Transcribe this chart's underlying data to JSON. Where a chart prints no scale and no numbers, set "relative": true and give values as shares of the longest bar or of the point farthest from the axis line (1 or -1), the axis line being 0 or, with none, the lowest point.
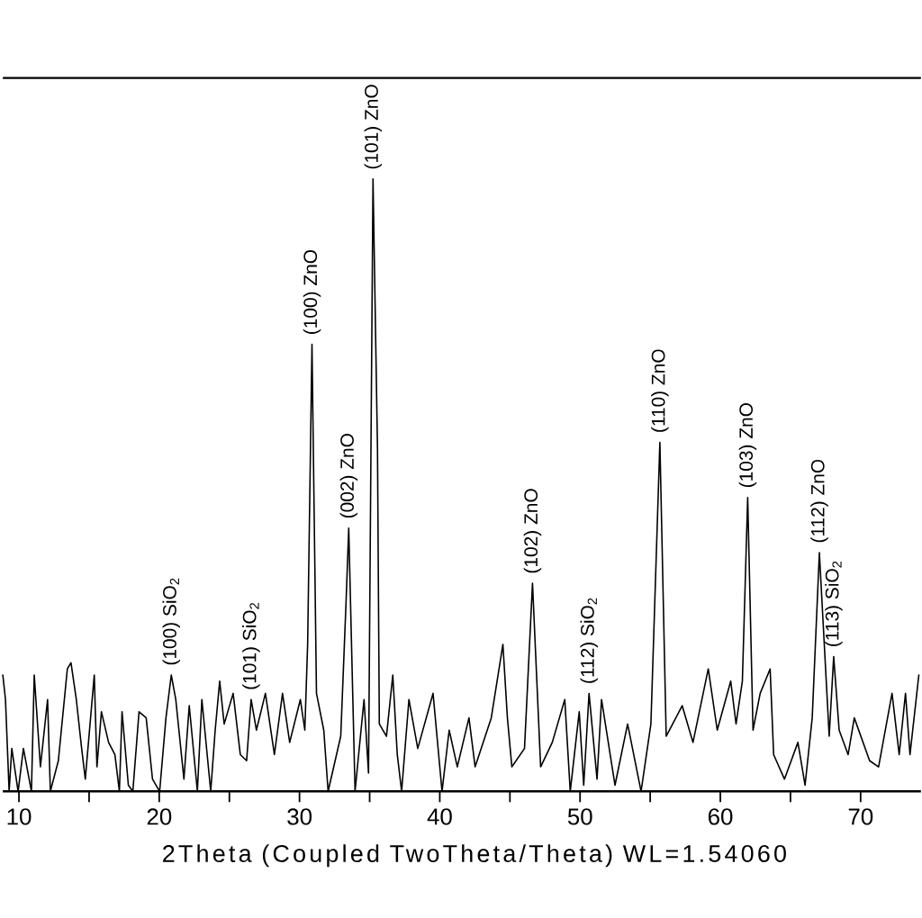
{
  "chart_data": {
    "type": "line",
    "xlabel": "2Theta (Coupled TwoTheta/Theta) WL=1.54060",
    "relative": true,
    "xlim": [
      8.85,
      74.3
    ],
    "xticks": [
      10,
      {
        "value": 15,
        "label": null
      },
      20,
      {
        "value": 25,
        "label": null
      },
      30,
      {
        "value": 35,
        "label": null
      },
      40,
      {
        "value": 45,
        "label": null
      },
      50,
      {
        "value": 55,
        "label": null
      },
      60,
      {
        "value": 65,
        "label": null
      },
      70
    ],
    "series": [
      {
        "color": "#000000",
        "x": [
          8.85,
          9.04,
          9.3,
          9.49,
          9.94,
          10.32,
          10.89,
          11.09,
          11.53,
          12.04,
          12.24,
          12.81,
          13.45,
          13.71,
          14.09,
          14.47,
          14.73,
          15.37,
          15.56,
          15.88,
          16.39,
          16.84,
          17.16,
          17.35,
          17.8,
          18.12,
          18.56,
          19.07,
          19.52,
          20.03,
          20.48,
          20.86,
          21.18,
          21.76,
          22.14,
          22.72,
          23.04,
          23.67,
          23.99,
          24.31,
          24.63,
          25.27,
          25.78,
          26.23,
          26.55,
          26.93,
          27.57,
          28.21,
          28.79,
          29.3,
          30.06,
          30.38,
          30.58,
          30.89,
          31.21,
          31.73,
          32.04,
          32.94,
          33.32,
          33.51,
          33.96,
          34.6,
          34.92,
          35.24,
          35.56,
          35.69,
          36.2,
          36.65,
          36.97,
          37.28,
          37.8,
          38.43,
          39.52,
          40.16,
          40.67,
          41.25,
          42.08,
          42.52,
          43.67,
          44.5,
          44.82,
          45.14,
          46.04,
          46.61,
          47.19,
          48.02,
          48.91,
          49.3,
          49.94,
          50.26,
          50.64,
          51.21,
          51.53,
          52.49,
          53.39,
          54.35,
          55.05,
          55.69,
          56.14,
          57.28,
          58.05,
          59.14,
          59.78,
          60.74,
          61.12,
          61.57,
          61.95,
          62.33,
          62.84,
          63.55,
          63.8,
          64.57,
          65.53,
          66.04,
          66.55,
          67.06,
          67.76,
          68.08,
          68.47,
          69.11,
          69.55,
          70.64,
          71.28,
          72.24,
          72.75,
          73.2,
          73.52,
          74.15
        ],
        "values": [
          0.19,
          0.15,
          0,
          0.07,
          0,
          0.07,
          0,
          0.19,
          0.04,
          0.15,
          0,
          0.05,
          0.2,
          0.21,
          0.15,
          0.07,
          0.02,
          0.19,
          0.04,
          0.13,
          0.08,
          0.06,
          0,
          0.13,
          0.01,
          0,
          0.13,
          0.12,
          0.02,
          0,
          0.12,
          0.19,
          0.15,
          0.02,
          0.14,
          0,
          0.15,
          0,
          0.1,
          0.18,
          0.11,
          0.16,
          0.06,
          0.05,
          0.15,
          0.1,
          0.16,
          0.06,
          0.16,
          0.08,
          0.15,
          0.1,
          0.24,
          0.73,
          0.16,
          0.1,
          0,
          0.09,
          0.31,
          0.43,
          0,
          0.15,
          0.03,
          1.0,
          0.56,
          0.11,
          0.09,
          0.19,
          0.06,
          0,
          0.15,
          0.07,
          0.16,
          0,
          0.1,
          0.04,
          0.12,
          0.04,
          0.12,
          0.24,
          0.12,
          0.04,
          0.07,
          0.34,
          0.04,
          0.08,
          0.15,
          0,
          0.13,
          0.01,
          0.16,
          0.02,
          0.15,
          0.01,
          0.11,
          0,
          0.11,
          0.57,
          0.09,
          0.14,
          0.08,
          0.2,
          0.1,
          0.18,
          0.11,
          0.18,
          0.48,
          0.1,
          0.16,
          0.2,
          0.06,
          0.02,
          0.08,
          0.01,
          0.12,
          0.39,
          0.09,
          0.22,
          0.1,
          0.06,
          0.12,
          0.05,
          0.04,
          0.16,
          0.06,
          0.16,
          0.06,
          0.19
        ]
      }
    ],
    "annotations": [
      {
        "text": "(100) SiO$_{2}$",
        "x": 20.86,
        "y": 0.19
      },
      {
        "text": "(101)  SiO$_{2}$",
        "x": 26.55,
        "y": 0.15
      },
      {
        "text": "(100) ZnO",
        "x": 30.89,
        "y": 0.73
      },
      {
        "text": "(002)  ZnO",
        "x": 33.51,
        "y": 0.43
      },
      {
        "text": "(101) ZnO",
        "x": 35.24,
        "y": 1.0
      },
      {
        "text": "(102)  ZnO",
        "x": 46.61,
        "y": 0.34
      },
      {
        "text": "(112) SiO$_{2}$",
        "x": 50.64,
        "y": 0.16
      },
      {
        "text": "(110)  ZnO",
        "x": 55.69,
        "y": 0.57
      },
      {
        "text": "(103)  ZnO",
        "x": 61.95,
        "y": 0.48
      },
      {
        "text": "(112)  ZnO",
        "x": 67.06,
        "y": 0.39
      },
      {
        "text": "(113)  SiO$_{2}$",
        "x": 68.08,
        "y": 0.22
      }
    ]
  }
}
